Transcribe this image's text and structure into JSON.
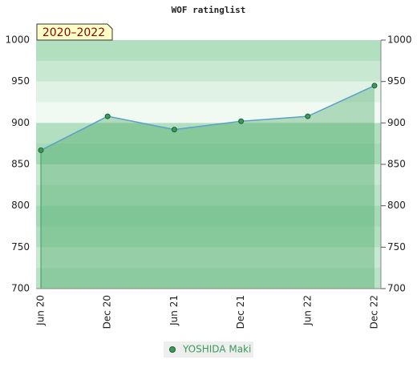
{
  "chart_data": {
    "type": "area",
    "title": "WOF ratinglist",
    "annotation": "2020–2022",
    "categories": [
      "Jun 20",
      "Dec 20",
      "Jun 21",
      "Dec 21",
      "Jun 22",
      "Dec 22"
    ],
    "series": [
      {
        "name": "YOSHIDA Maki",
        "color": "#5aa0c8",
        "values": [
          867,
          908,
          892,
          902,
          908,
          945
        ]
      }
    ],
    "ylim": [
      700,
      1000
    ],
    "yticks": [
      700,
      750,
      800,
      850,
      900,
      950,
      1000
    ]
  }
}
